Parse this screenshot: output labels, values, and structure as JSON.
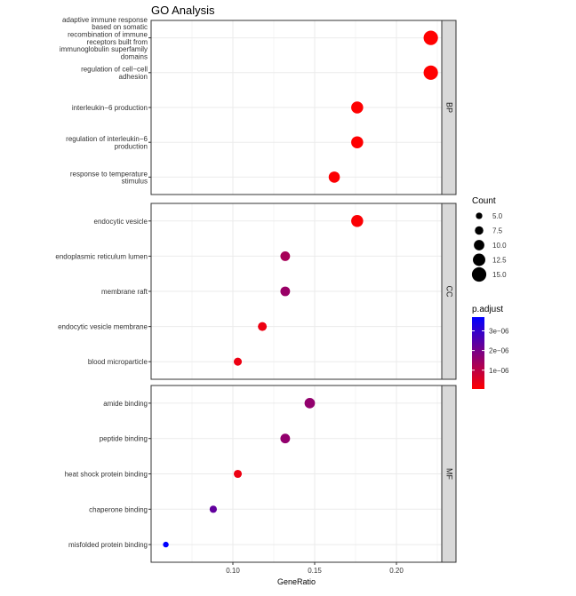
{
  "chart_data": {
    "type": "scatter",
    "title": "GO Analysis",
    "xlabel": "GeneRatio",
    "ylabel": "",
    "xlim": [
      0.05,
      0.24
    ],
    "x_ticks": [
      {
        "value": 0.1,
        "label": "0.10"
      },
      {
        "value": 0.15,
        "label": "0.15"
      },
      {
        "value": 0.2,
        "label": "0.20"
      }
    ],
    "grid": true,
    "facets": [
      {
        "label": "BP",
        "terms": [
          {
            "lines": [
              "adaptive immune response",
              "based on somatic",
              "recombination of immune",
              "receptors built from",
              "immunoglobulin superfamily",
              "domains"
            ],
            "gene_ratio": 0.221,
            "count": 15,
            "p_adjust": 4e-08
          },
          {
            "lines": [
              "regulation of cell−cell",
              "adhesion"
            ],
            "gene_ratio": 0.221,
            "count": 15,
            "p_adjust": 4e-08
          },
          {
            "lines": [
              "interleukin−6 production"
            ],
            "gene_ratio": 0.176,
            "count": 12,
            "p_adjust": 6e-08
          },
          {
            "lines": [
              "regulation of interleukin−6",
              "production"
            ],
            "gene_ratio": 0.176,
            "count": 12,
            "p_adjust": 6e-08
          },
          {
            "lines": [
              "response to temperature",
              "stimulus"
            ],
            "gene_ratio": 0.162,
            "count": 11,
            "p_adjust": 8e-08
          }
        ]
      },
      {
        "label": "CC",
        "terms": [
          {
            "lines": [
              "endocytic vesicle"
            ],
            "gene_ratio": 0.176,
            "count": 12,
            "p_adjust": 1e-07
          },
          {
            "lines": [
              "endoplasmic reticulum lumen"
            ],
            "gene_ratio": 0.132,
            "count": 9,
            "p_adjust": 1.3e-06
          },
          {
            "lines": [
              "membrane raft"
            ],
            "gene_ratio": 0.132,
            "count": 9,
            "p_adjust": 1.5e-06
          },
          {
            "lines": [
              "endocytic vesicle membrane"
            ],
            "gene_ratio": 0.118,
            "count": 8,
            "p_adjust": 3e-07
          },
          {
            "lines": [
              "blood microparticle"
            ],
            "gene_ratio": 0.103,
            "count": 7,
            "p_adjust": 3e-07
          }
        ]
      },
      {
        "label": "MF",
        "terms": [
          {
            "lines": [
              "amide binding"
            ],
            "gene_ratio": 0.147,
            "count": 10,
            "p_adjust": 1.6e-06
          },
          {
            "lines": [
              "peptide binding"
            ],
            "gene_ratio": 0.132,
            "count": 9,
            "p_adjust": 1.6e-06
          },
          {
            "lines": [
              "heat shock protein binding"
            ],
            "gene_ratio": 0.103,
            "count": 7,
            "p_adjust": 3e-07
          },
          {
            "lines": [
              "chaperone binding"
            ],
            "gene_ratio": 0.088,
            "count": 6,
            "p_adjust": 2.3e-06
          },
          {
            "lines": [
              "misfolded protein binding"
            ],
            "gene_ratio": 0.059,
            "count": 4,
            "p_adjust": 3.7e-06
          }
        ]
      }
    ],
    "size_legend": {
      "title": "Count",
      "entries": [
        {
          "value": 5.0,
          "label": "5.0"
        },
        {
          "value": 7.5,
          "label": "7.5"
        },
        {
          "value": 10.0,
          "label": "10.0"
        },
        {
          "value": 12.5,
          "label": "12.5"
        },
        {
          "value": 15.0,
          "label": "15.0"
        }
      ]
    },
    "color_legend": {
      "title": "p.adjust",
      "low_color": "#ff0000",
      "high_color": "#0000ff",
      "range": [
        4e-08,
        3.7e-06
      ],
      "breaks": [
        {
          "value": 1e-06,
          "label": "1e−06"
        },
        {
          "value": 2e-06,
          "label": "2e−06"
        },
        {
          "value": 3e-06,
          "label": "3e−06"
        }
      ]
    },
    "colors": {
      "panel_border": "#333333",
      "grid": "#ebebeb",
      "strip_fill": "#d9d9d9",
      "dot_low": "#ff0000",
      "dot_high": "#0000ff"
    }
  }
}
